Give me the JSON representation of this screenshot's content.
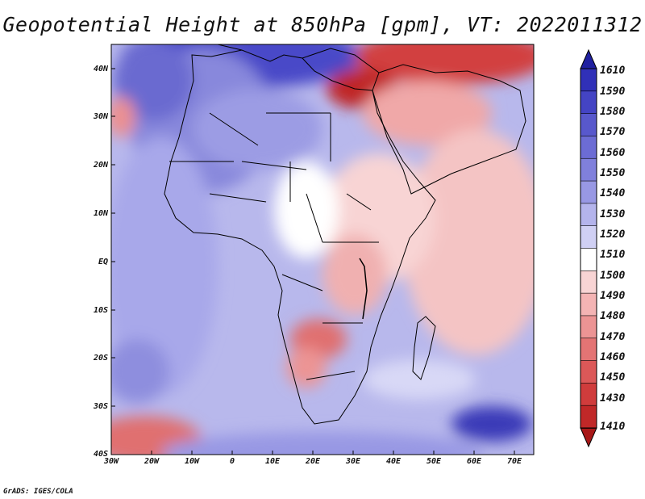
{
  "title": "Geopotential Height at 850hPa [gpm], VT: 2022011312",
  "credit": "GrADS: IGES/COLA",
  "lat_labels": [
    "40N",
    "30N",
    "20N",
    "10N",
    "EQ",
    "10S",
    "20S",
    "30S",
    "40S"
  ],
  "lon_labels": [
    "30W",
    "20W",
    "10W",
    "0",
    "10E",
    "20E",
    "30E",
    "40E",
    "50E",
    "60E",
    "70E"
  ],
  "colorbar": {
    "labels": [
      "1610",
      "1590",
      "1580",
      "1570",
      "1560",
      "1550",
      "1540",
      "1530",
      "1520",
      "1510",
      "1500",
      "1490",
      "1480",
      "1470",
      "1460",
      "1450",
      "1430",
      "1410"
    ],
    "colors": [
      "#2020a0",
      "#3030b8",
      "#4444c4",
      "#5858cc",
      "#6c6cd4",
      "#8080dc",
      "#9898e4",
      "#b4b4ec",
      "#d0d0f4",
      "#ffffff",
      "#f8d4d4",
      "#f4b4b4",
      "#ec9494",
      "#e47474",
      "#dc5858",
      "#d03c3c",
      "#c02828",
      "#a81818"
    ]
  },
  "map_data": {
    "variable": "Geopotential Height",
    "level": "850hPa",
    "units": "gpm",
    "valid_time": "2022011312",
    "lon_range": [
      -30,
      75
    ],
    "lat_range": [
      -40,
      45
    ]
  }
}
